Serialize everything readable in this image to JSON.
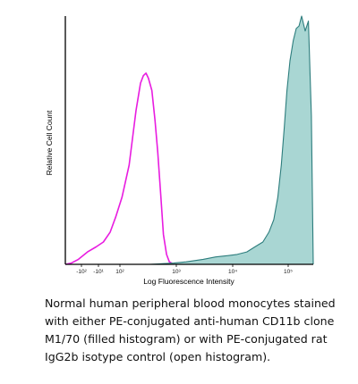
{
  "chart_data": {
    "type": "area",
    "title": "",
    "xlabel": "Log Fluorescence Intensity",
    "ylabel": "Relative Cell Count",
    "x_scale": "biexponential",
    "grid": false,
    "legend": "none",
    "x_ticks": [
      {
        "value": -100,
        "label": "-10²"
      },
      {
        "value": -10,
        "label": "-10¹"
      },
      {
        "value": 100,
        "label": "10²"
      },
      {
        "value": 1000,
        "label": "10³"
      },
      {
        "value": 10000,
        "label": "10⁴"
      },
      {
        "value": 100000,
        "label": "10⁵"
      }
    ],
    "ylim": [
      0,
      100
    ],
    "series": [
      {
        "style": "open",
        "color": "#e81ce0",
        "points": [
          [
            -250,
            0
          ],
          [
            -180,
            0.5
          ],
          [
            -120,
            2
          ],
          [
            -60,
            5
          ],
          [
            -20,
            7
          ],
          [
            10,
            9
          ],
          [
            40,
            13
          ],
          [
            70,
            19
          ],
          [
            110,
            27
          ],
          [
            150,
            40
          ],
          [
            200,
            62
          ],
          [
            240,
            73
          ],
          [
            270,
            76
          ],
          [
            300,
            77
          ],
          [
            330,
            75
          ],
          [
            380,
            70
          ],
          [
            430,
            58
          ],
          [
            480,
            45
          ],
          [
            540,
            28
          ],
          [
            600,
            12
          ],
          [
            680,
            4
          ],
          [
            760,
            1
          ],
          [
            900,
            0
          ]
        ]
      },
      {
        "style": "filled",
        "color": "#2d7d7d",
        "fill": "#a9d6d3",
        "points": [
          [
            350,
            0
          ],
          [
            900,
            0.5
          ],
          [
            1500,
            1
          ],
          [
            3000,
            2
          ],
          [
            5000,
            3
          ],
          [
            8000,
            3.5
          ],
          [
            12000,
            4
          ],
          [
            18000,
            5
          ],
          [
            25000,
            7
          ],
          [
            35000,
            9
          ],
          [
            45000,
            13
          ],
          [
            55000,
            18
          ],
          [
            65000,
            27
          ],
          [
            75000,
            40
          ],
          [
            85000,
            55
          ],
          [
            95000,
            70
          ],
          [
            105000,
            82
          ],
          [
            115000,
            90
          ],
          [
            125000,
            95
          ],
          [
            135000,
            96
          ],
          [
            145000,
            100
          ],
          [
            160000,
            94
          ],
          [
            175000,
            98
          ],
          [
            190000,
            60
          ],
          [
            200000,
            0
          ]
        ]
      }
    ]
  },
  "caption": "Normal human peripheral blood monocytes stained with either PE-conjugated anti-human CD11b clone M1/70 (filled histogram) or with PE-conjugated rat IgG2b isotype control (open histogram)."
}
